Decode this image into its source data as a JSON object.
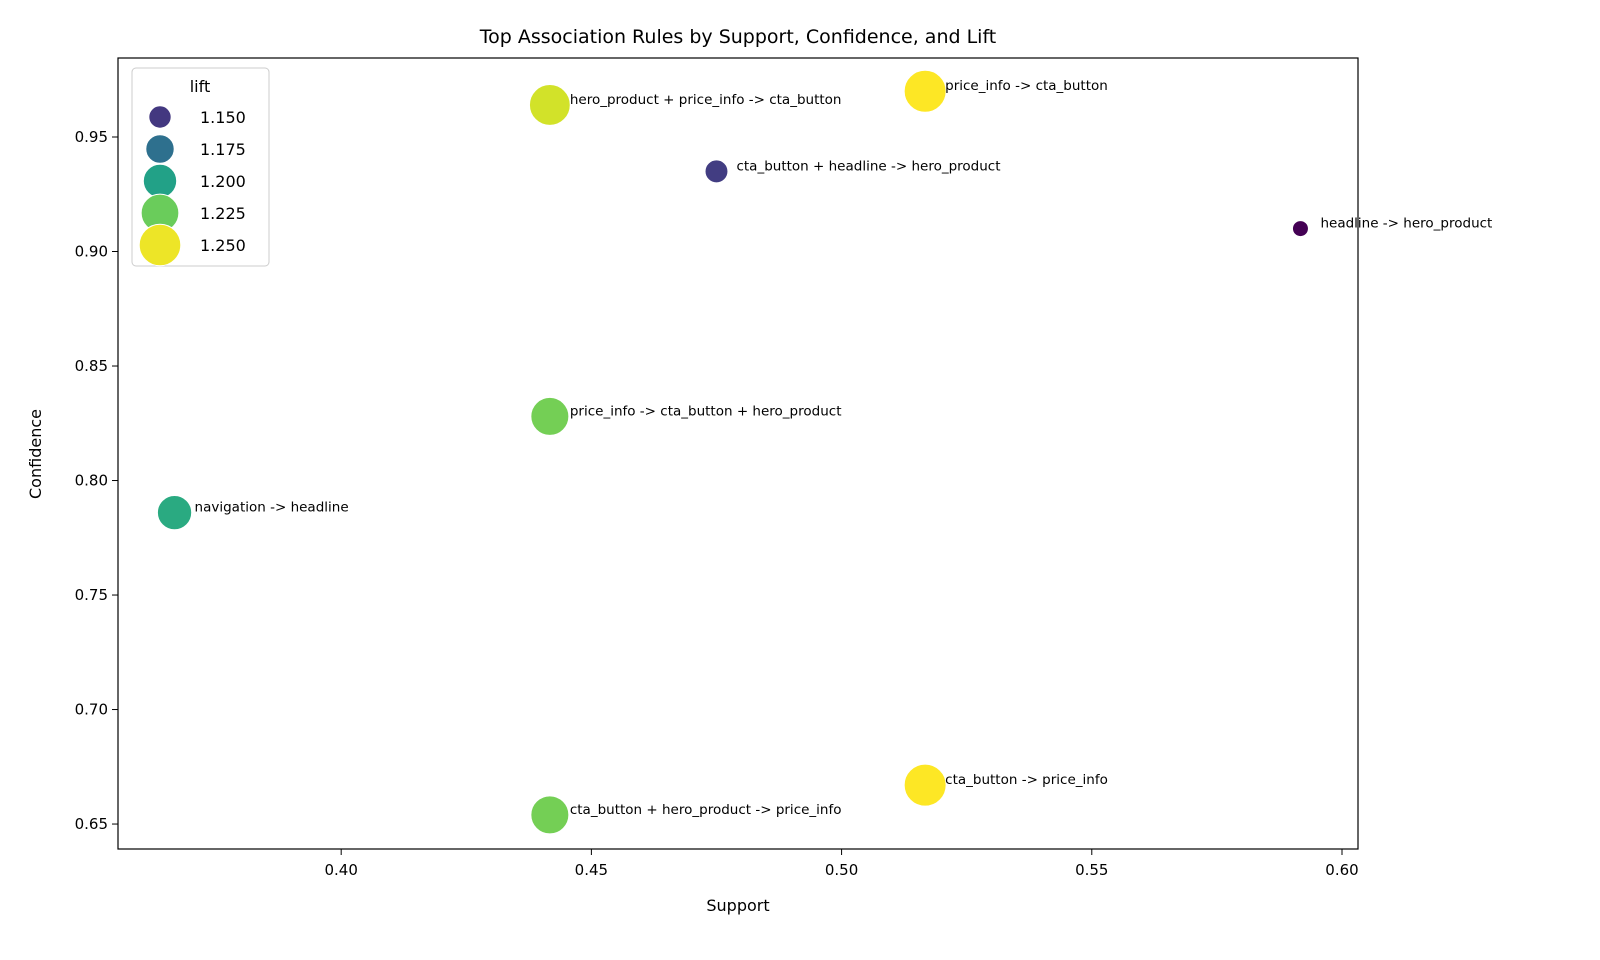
{
  "chart_data": {
    "type": "scatter",
    "title": "Top Association Rules by Support, Confidence, and Lift",
    "xlabel": "Support",
    "ylabel": "Confidence",
    "xlim": [
      0.3554,
      0.6032
    ],
    "ylim": [
      0.6391,
      0.9845
    ],
    "xticks": [
      "0.40",
      "0.45",
      "0.50",
      "0.55",
      "0.60"
    ],
    "yticks": [
      "0.65",
      "0.70",
      "0.75",
      "0.80",
      "0.85",
      "0.90",
      "0.95"
    ],
    "grid": false,
    "hue_and_size": "lift",
    "colormap": "viridis",
    "lift_range": [
      1.13,
      1.253
    ],
    "legend": {
      "title": "lift",
      "placement": "top-left",
      "entries": [
        {
          "label": "1.150",
          "value": 1.15
        },
        {
          "label": "1.175",
          "value": 1.175
        },
        {
          "label": "1.200",
          "value": 1.2
        },
        {
          "label": "1.225",
          "value": 1.225
        },
        {
          "label": "1.250",
          "value": 1.25
        }
      ]
    },
    "points": [
      {
        "rule": "headline -> hero_product",
        "support": 0.5917,
        "confidence": 0.91,
        "lift": 1.13
      },
      {
        "rule": "cta_button + headline -> hero_product",
        "support": 0.475,
        "confidence": 0.935,
        "lift": 1.152
      },
      {
        "rule": "price_info -> cta_button",
        "support": 0.5167,
        "confidence": 0.97,
        "lift": 1.253
      },
      {
        "rule": "hero_product + price_info -> cta_button",
        "support": 0.4417,
        "confidence": 0.964,
        "lift": 1.245
      },
      {
        "rule": "price_info -> cta_button + hero_product",
        "support": 0.4417,
        "confidence": 0.828,
        "lift": 1.227
      },
      {
        "rule": "navigation -> headline",
        "support": 0.3667,
        "confidence": 0.786,
        "lift": 1.205
      },
      {
        "rule": "cta_button -> price_info",
        "support": 0.5167,
        "confidence": 0.667,
        "lift": 1.253
      },
      {
        "rule": "cta_button + hero_product -> price_info",
        "support": 0.4417,
        "confidence": 0.654,
        "lift": 1.227
      }
    ]
  }
}
